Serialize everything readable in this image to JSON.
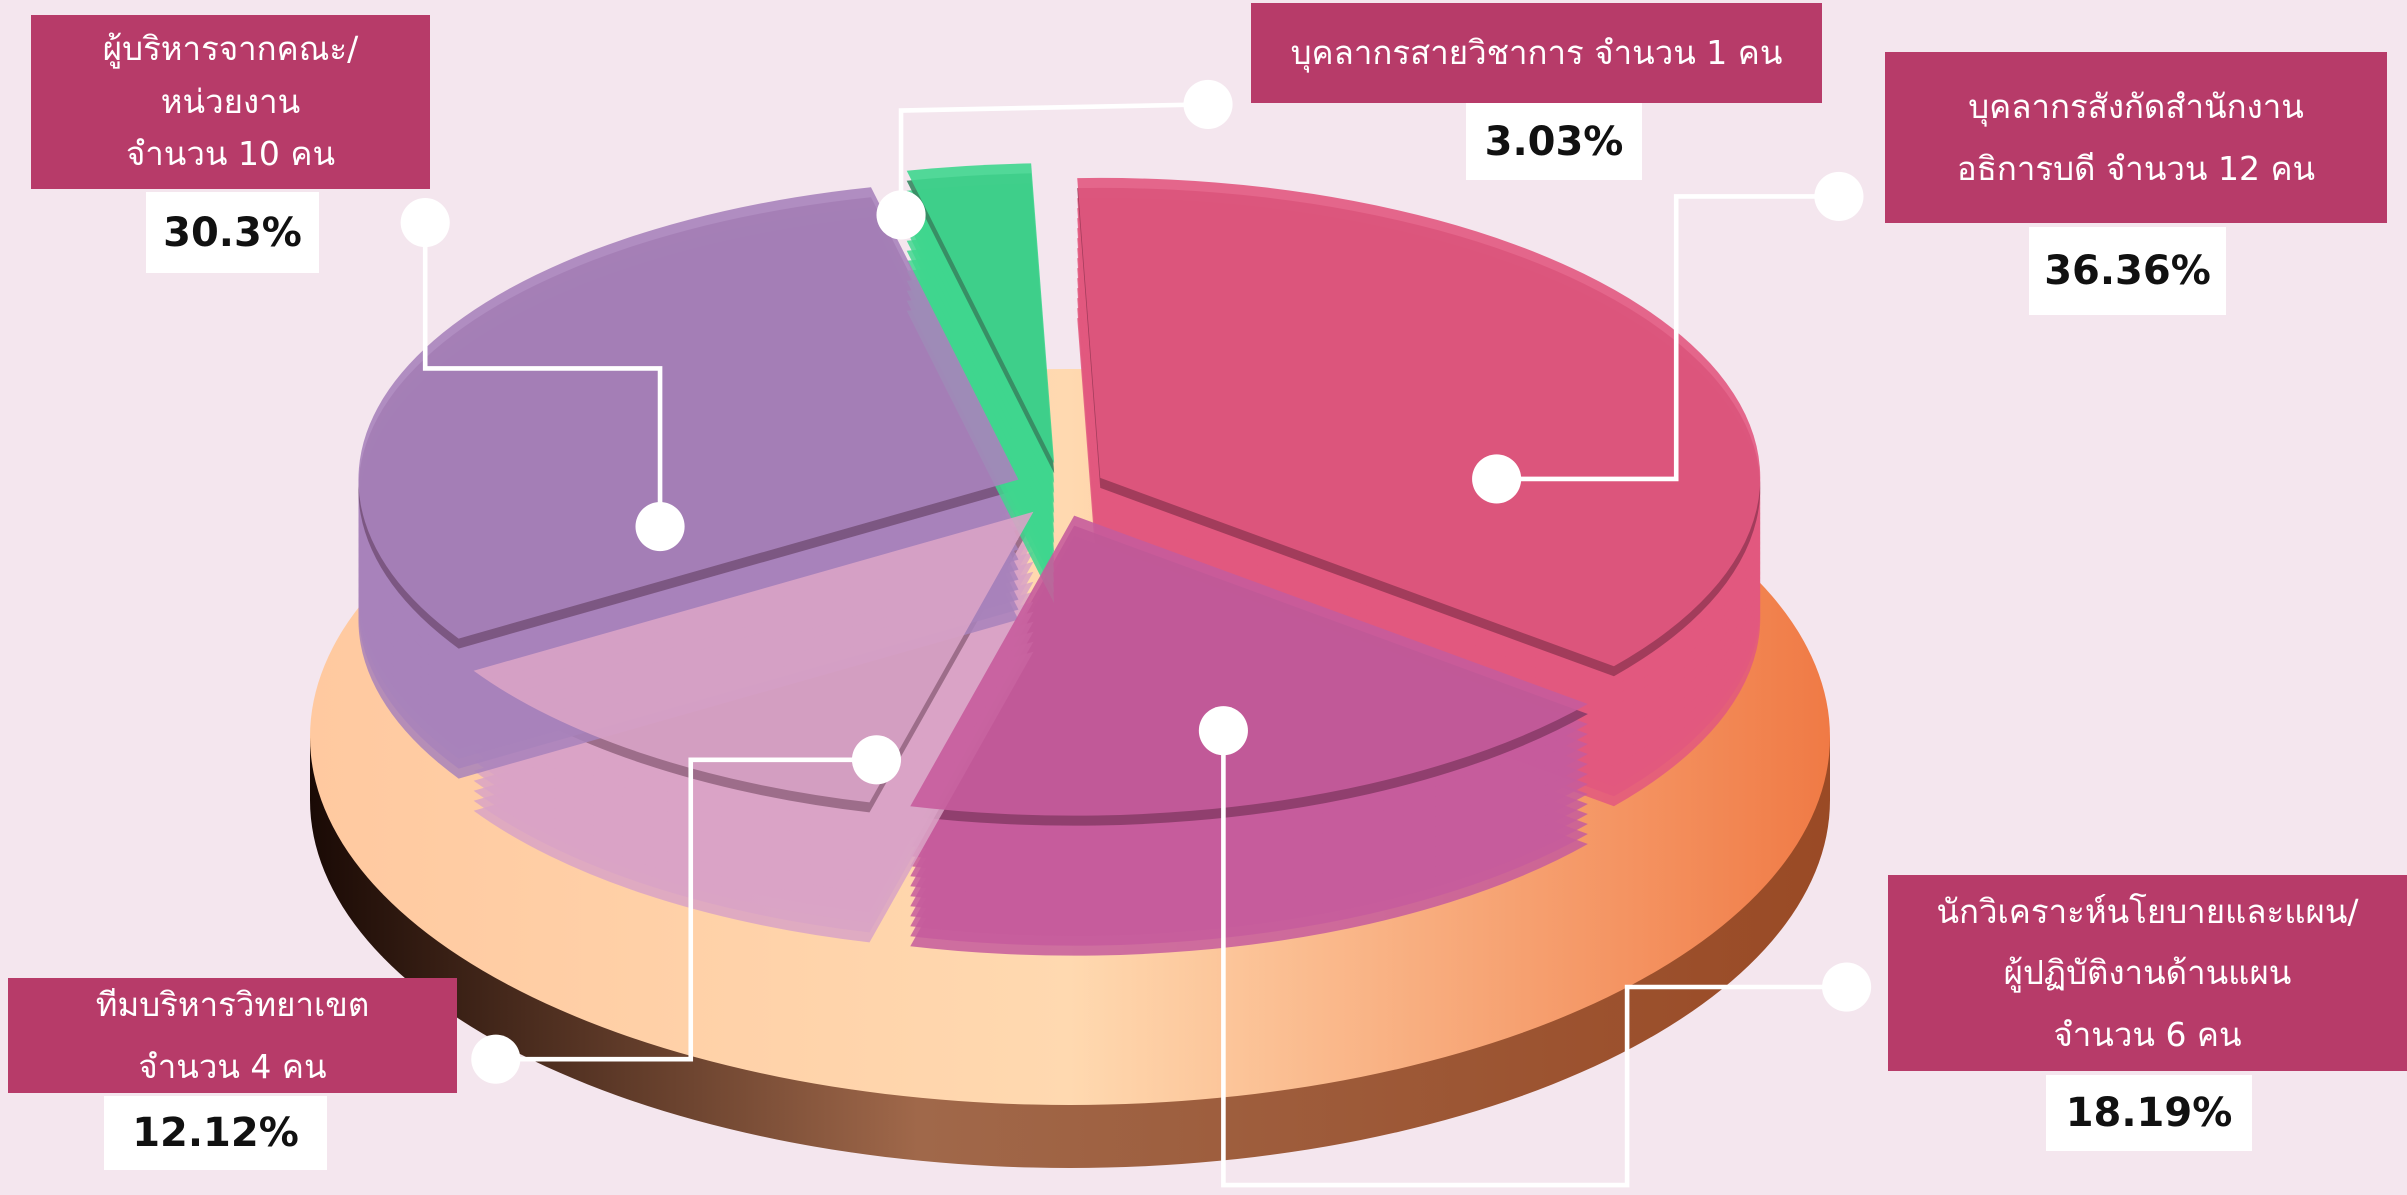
{
  "chart_data": {
    "type": "pie",
    "categories": [
      "บุคลากรสังกัดสำนักงาน\nอธิการบดี จำนวน 12 คน",
      "นักวิเคราะห์นโยบายและแผน/\nผู้ปฏิบัติงานด้านแผน\nจำนวน 6 คน",
      "ทีมบริหารวิทยาเขต\nจำนวน 4 คน",
      "ผู้บริหารจากคณะ/\nหน่วยงาน\nจำนวน 10 คน",
      "บุคลากรสายวิชาการ จำนวน 1 คน"
    ],
    "values": [
      36.36,
      18.19,
      12.12,
      30.3,
      3.03
    ],
    "value_labels": [
      "36.36%",
      "18.19%",
      "12.12%",
      "30.3%",
      "3.03%"
    ],
    "colors": [
      "#e2587f",
      "#c65c9c",
      "#d9a3c6",
      "#a883bb",
      "#3fd68e"
    ]
  }
}
